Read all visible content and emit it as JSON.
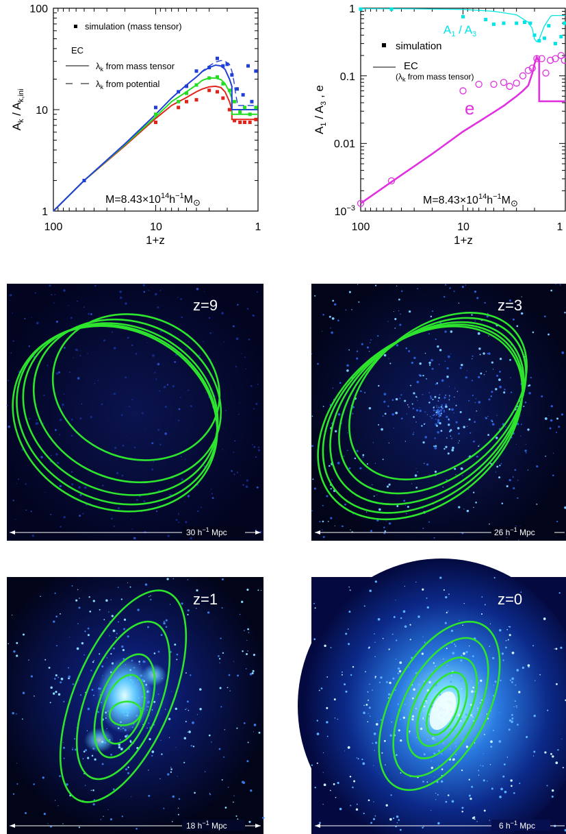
{
  "chart_data": [
    {
      "type": "line",
      "panel": "top-left",
      "xlabel": "1+z",
      "ylabel": "A_k / A_k,ini",
      "x_scale": "log",
      "y_scale": "log",
      "x_reversed": true,
      "xlim": [
        100,
        1
      ],
      "ylim": [
        1,
        100
      ],
      "x_ticks": [
        "100",
        "10",
        "1"
      ],
      "y_ticks": [
        "1",
        "10",
        "100"
      ],
      "annotation": "M=8.43×10^14 h^-1 M_⊙",
      "legend": {
        "simulation": "simulation (mass tensor)",
        "ec_title": "EC",
        "solid": "λ_k from mass tensor",
        "dashed": "λ_k from potential"
      },
      "series": [
        {
          "color": "#1f3fd6",
          "ec_mass_tensor": {
            "x": [
              100,
              50,
              20,
              10,
              7,
              5,
              4,
              3.5,
              3,
              2.6,
              2.3,
              2.1,
              1.9,
              1.8,
              1.8,
              1.4,
              1.2,
              1.1,
              1.0
            ],
            "y": [
              1,
              2,
              4.6,
              9,
              13,
              17.5,
              21,
              23.8,
              26,
              27.5,
              27,
              25,
              20,
              17,
              10,
              10,
              10,
              10,
              10
            ]
          },
          "ec_potential": {
            "x": [
              7,
              5,
              4,
              3.5,
              3,
              2.6,
              2.3,
              2.1,
              1.9,
              1.8,
              1.72,
              1.65,
              1.6,
              1.6,
              1.1,
              1.0
            ],
            "y": [
              13,
              17.5,
              21,
              24,
              27,
              29.5,
              30.5,
              30,
              28,
              24,
              19,
              14,
              12,
              11,
              11,
              11
            ]
          },
          "simulation": {
            "x": [
              50,
              10,
              6,
              5,
              4,
              3,
              2.5,
              2.2,
              2.0,
              1.8,
              1.6,
              1.4,
              1.25,
              1.15,
              1.05
            ],
            "y": [
              2,
              10.5,
              15,
              17,
              24,
              26,
              32,
              27,
              28,
              22,
              16,
              14,
              27,
              12,
              24
            ]
          }
        },
        {
          "color": "#22dd22",
          "ec_mass_tensor": {
            "x": [
              100,
              50,
              20,
              10,
              7,
              5,
              4,
              3.5,
              3,
              2.6,
              2.3,
              2.1,
              1.9,
              1.8,
              1.8,
              1.4,
              1.2,
              1.1,
              1.0
            ],
            "y": [
              1,
              2,
              4.5,
              8.5,
              12,
              15,
              17.5,
              19.5,
              20.5,
              20.5,
              19.8,
              18,
              15,
              13,
              9,
              9,
              9,
              9,
              9
            ]
          },
          "simulation": {
            "x": [
              10,
              6,
              5,
              4,
              3,
              2.5,
              2.2,
              1.9,
              1.7,
              1.5,
              1.35,
              1.2,
              1.05
            ],
            "y": [
              9,
              12,
              14.5,
              17.5,
              20.5,
              21,
              18,
              15.5,
              12,
              9.5,
              10.5,
              9,
              10.5
            ]
          }
        },
        {
          "color": "#e2231a",
          "ec_mass_tensor": {
            "x": [
              100,
              50,
              20,
              10,
              7,
              5,
              4,
              3.5,
              3,
              2.6,
              2.3,
              2.1,
              1.9,
              1.8,
              1.8,
              1.4,
              1.2,
              1.1,
              1.0
            ],
            "y": [
              1,
              2,
              4.4,
              8.2,
              11,
              13.2,
              15,
              16,
              16.8,
              17,
              16.5,
              15,
              12,
              10,
              8,
              8,
              8,
              8,
              8
            ]
          },
          "simulation": {
            "x": [
              10,
              6,
              5,
              4,
              3,
              2.5,
              2.2,
              1.9,
              1.7,
              1.5,
              1.35,
              1.2,
              1.05
            ],
            "y": [
              7.5,
              10.5,
              12,
              12.5,
              15.5,
              15,
              13,
              10,
              7.8,
              7.5,
              7.5,
              7.5,
              8
            ]
          }
        }
      ]
    },
    {
      "type": "line",
      "panel": "top-right",
      "xlabel": "1+z",
      "ylabel": "A_1 / A_3 , e",
      "x_scale": "log",
      "y_scale": "log",
      "x_reversed": true,
      "xlim": [
        100,
        1
      ],
      "ylim": [
        0.001,
        1
      ],
      "x_ticks": [
        "100",
        "10",
        "1"
      ],
      "y_ticks": [
        "10^-3",
        "0.01",
        "0.1",
        "1"
      ],
      "annotation": "M=8.43×10^14 h^-1 M_⊙",
      "legend": {
        "simulation": "simulation",
        "ec": "EC",
        "ec_sub": "(λ_k from mass tensor)"
      },
      "labels": {
        "ratio": "A_1 / A_3",
        "e": "e"
      },
      "series": [
        {
          "name": "A_1 / A_3",
          "color": "#00e5e5",
          "ec": {
            "x": [
              100,
              30,
              10,
              5,
              3,
              2.3,
              2.1,
              2.0,
              1.9,
              1.8,
              1.6,
              1.4,
              1.35,
              1.35,
              1.0
            ],
            "y": [
              0.985,
              0.98,
              0.96,
              0.9,
              0.8,
              0.62,
              0.5,
              0.35,
              0.32,
              0.35,
              0.55,
              0.75,
              0.78,
              0.78,
              0.78
            ]
          },
          "simulation": {
            "x": [
              100,
              50,
              10,
              6,
              5,
              4,
              3,
              2.5,
              2.2,
              2.0,
              1.8,
              1.6,
              1.45,
              1.25,
              1.1,
              1.02
            ],
            "y": [
              0.97,
              0.97,
              0.75,
              0.68,
              0.58,
              0.6,
              0.6,
              0.62,
              0.6,
              0.4,
              0.33,
              0.36,
              0.55,
              0.3,
              0.38,
              0.6
            ]
          }
        },
        {
          "name": "e",
          "color": "#e030e0",
          "ec": {
            "x": [
              100,
              50,
              20,
              10,
              7,
              5,
              4,
              3.5,
              3,
              2.6,
              2.3,
              2.1,
              2.0,
              1.9,
              1.8,
              1.8,
              1.0
            ],
            "y": [
              0.0013,
              0.0027,
              0.007,
              0.015,
              0.021,
              0.029,
              0.036,
              0.042,
              0.05,
              0.06,
              0.072,
              0.11,
              0.15,
              0.19,
              0.16,
              0.042,
              0.042
            ]
          },
          "simulation": {
            "x": [
              100,
              50,
              10,
              7,
              5,
              4,
              3.5,
              3,
              2.6,
              2.3,
              2.1,
              1.9,
              1.7,
              1.55,
              1.4,
              1.25,
              1.1,
              1.02
            ],
            "y": [
              0.0013,
              0.0028,
              0.06,
              0.075,
              0.075,
              0.08,
              0.07,
              0.078,
              0.1,
              0.12,
              0.13,
              0.18,
              0.18,
              0.11,
              0.17,
              0.18,
              0.2,
              0.17
            ]
          }
        }
      ]
    }
  ],
  "images": [
    {
      "label": "z=9",
      "scale": "30 h^-1 Mpc"
    },
    {
      "label": "z=3",
      "scale": "26 h^-1 Mpc"
    },
    {
      "label": "z=1",
      "scale": "18 h^-1 Mpc"
    },
    {
      "label": "z=0",
      "scale": "6 h^-1 Mpc"
    }
  ],
  "colors": {
    "blue": "#1f3fd6",
    "green": "#22dd22",
    "red": "#e2231a",
    "cyan": "#00e5e5",
    "magenta": "#e030e0",
    "ellipse": "#2ee52e",
    "sky": "#02041a"
  }
}
